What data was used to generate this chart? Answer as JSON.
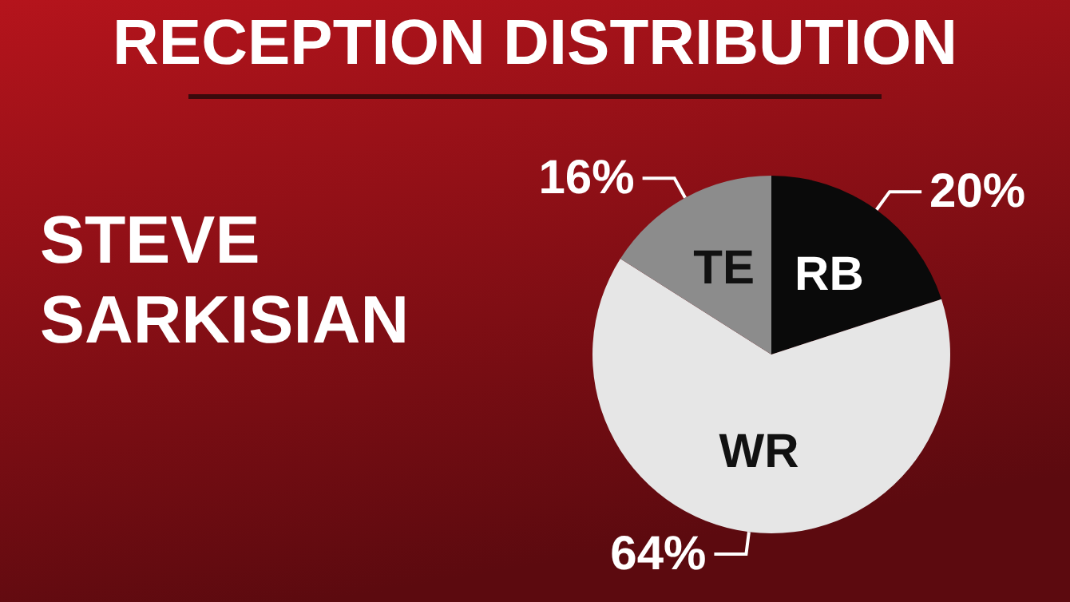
{
  "chart_data": {
    "type": "pie",
    "title": "RECEPTION DISTRIBUTION",
    "subtitle": "STEVE SARKISIAN",
    "categories": [
      "RB",
      "WR",
      "TE"
    ],
    "values": [
      20,
      64,
      16
    ],
    "colors": [
      "#0a0a0a",
      "#e6e6e6",
      "#8c8c8c"
    ],
    "value_labels": [
      "20%",
      "64%",
      "16%"
    ],
    "legend": false
  }
}
